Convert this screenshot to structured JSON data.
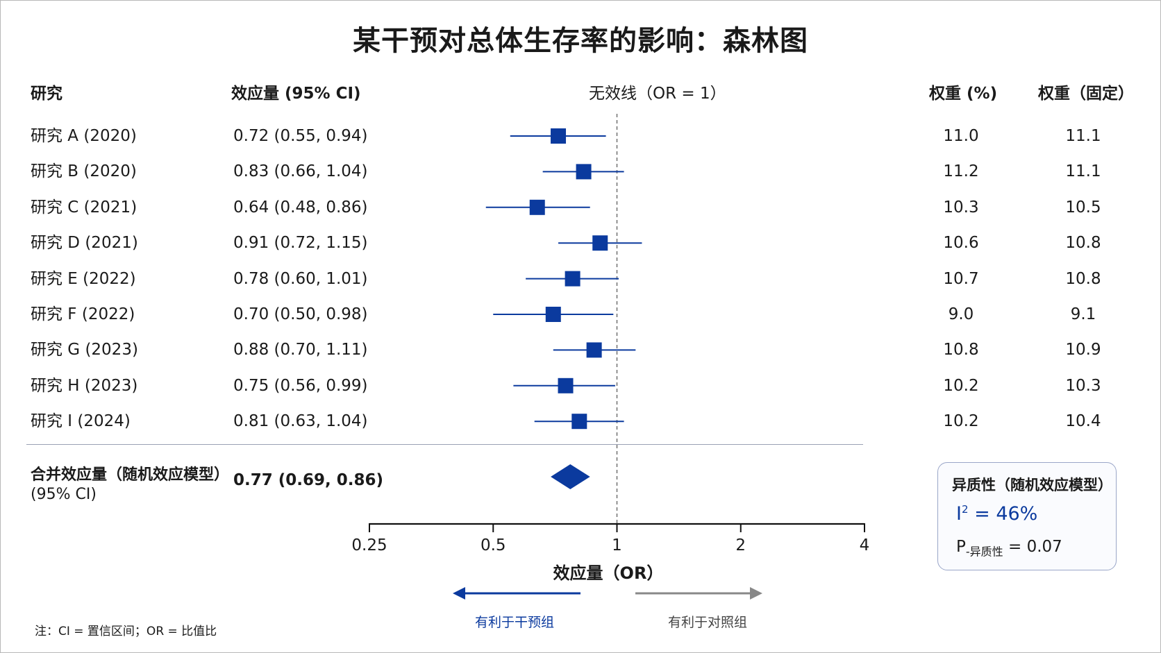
{
  "title": "某干预对总体生存率的影响：森林图",
  "headers": {
    "study": "研究",
    "effect": "效应量 (95% CI)",
    "null_line": "无效线（OR = 1）",
    "weight_random": "权重 (%)",
    "weight_fixed": "权重（固定）"
  },
  "pooled": {
    "label": "合并效应量（随机效应模型）",
    "sublabel": "(95% CI)",
    "text": "0.77 (0.69, 0.86)"
  },
  "heterogeneity": {
    "title": "异质性（随机效应模型）",
    "i2_label": "I",
    "i2_sup": "2",
    "i2_value": "= 46%",
    "p_label": "P",
    "p_sub": "异质性",
    "p_value": "= 0.07"
  },
  "note": "注：CI = 置信区间；OR = 比值比",
  "favor": {
    "left": "有利于干预组",
    "right": "有利于对照组"
  },
  "colors": {
    "marker": "#0b3a9e",
    "favor_right": "#888888",
    "null_line": "#777777"
  },
  "chart_data": {
    "type": "forest",
    "xlabel": "效应量（OR）",
    "xscale": "log",
    "xlim": [
      0.25,
      4
    ],
    "xticks": [
      0.25,
      0.5,
      1,
      2,
      4
    ],
    "xtick_labels": [
      "0.25",
      "0.5",
      "1",
      "2",
      "4"
    ],
    "null_value": 1,
    "studies": [
      {
        "name": "研究 A (2020)",
        "or": 0.72,
        "lo": 0.55,
        "hi": 0.94,
        "text": "0.72 (0.55, 0.94)",
        "w_random": "11.0",
        "w_fixed": "11.1"
      },
      {
        "name": "研究 B (2020)",
        "or": 0.83,
        "lo": 0.66,
        "hi": 1.04,
        "text": "0.83 (0.66, 1.04)",
        "w_random": "11.2",
        "w_fixed": "11.1"
      },
      {
        "name": "研究 C (2021)",
        "or": 0.64,
        "lo": 0.48,
        "hi": 0.86,
        "text": "0.64 (0.48, 0.86)",
        "w_random": "10.3",
        "w_fixed": "10.5"
      },
      {
        "name": "研究 D (2021)",
        "or": 0.91,
        "lo": 0.72,
        "hi": 1.15,
        "text": "0.91 (0.72, 1.15)",
        "w_random": "10.6",
        "w_fixed": "10.8"
      },
      {
        "name": "研究 E (2022)",
        "or": 0.78,
        "lo": 0.6,
        "hi": 1.01,
        "text": "0.78 (0.60, 1.01)",
        "w_random": "10.7",
        "w_fixed": "10.8"
      },
      {
        "name": "研究 F (2022)",
        "or": 0.7,
        "lo": 0.5,
        "hi": 0.98,
        "text": "0.70 (0.50, 0.98)",
        "w_random": "9.0",
        "w_fixed": "9.1"
      },
      {
        "name": "研究 G (2023)",
        "or": 0.88,
        "lo": 0.7,
        "hi": 1.11,
        "text": "0.88 (0.70, 1.11)",
        "w_random": "10.8",
        "w_fixed": "10.9"
      },
      {
        "name": "研究 H (2023)",
        "or": 0.75,
        "lo": 0.56,
        "hi": 0.99,
        "text": "0.75 (0.56, 0.99)",
        "w_random": "10.2",
        "w_fixed": "10.3"
      },
      {
        "name": "研究 I (2024)",
        "or": 0.81,
        "lo": 0.63,
        "hi": 1.04,
        "text": "0.81 (0.63, 1.04)",
        "w_random": "10.2",
        "w_fixed": "10.4"
      }
    ],
    "pooled": {
      "or": 0.77,
      "lo": 0.69,
      "hi": 0.86
    }
  }
}
